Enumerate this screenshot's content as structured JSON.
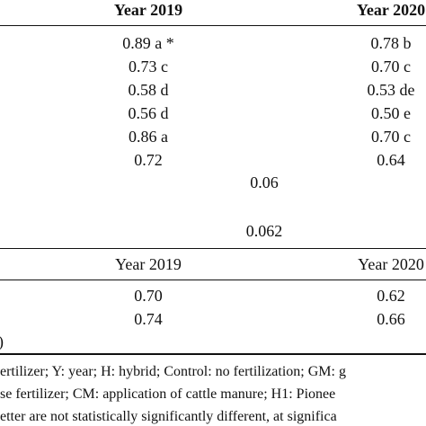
{
  "table1": {
    "headers": [
      "Year 2019",
      "Year 2020"
    ],
    "rows": [
      [
        "0.89 a *",
        "0.78 b"
      ],
      [
        "0.73 c",
        "0.70 c"
      ],
      [
        "0.58 d",
        "0.53 de"
      ],
      [
        "0.56 d",
        "0.50 e"
      ],
      [
        "0.86 a",
        "0.70 c"
      ],
      [
        "0.72",
        "0.64"
      ]
    ],
    "lsd": [
      "0.06",
      "0.062"
    ]
  },
  "table2": {
    "headers": [
      "Year 2019",
      "Year 2020"
    ],
    "rows": [
      [
        "0.70",
        "0.62"
      ],
      [
        "0.74",
        "0.66"
      ]
    ],
    "left_fragment": ")"
  },
  "footnotes": [
    "ertilizer; Y: year; H: hybrid; Control: no fertilization; GM: g",
    "se fertilizer; CM: application of cattle manure; H1: Pionee",
    "etter are not statistically significantly different, at significa"
  ]
}
